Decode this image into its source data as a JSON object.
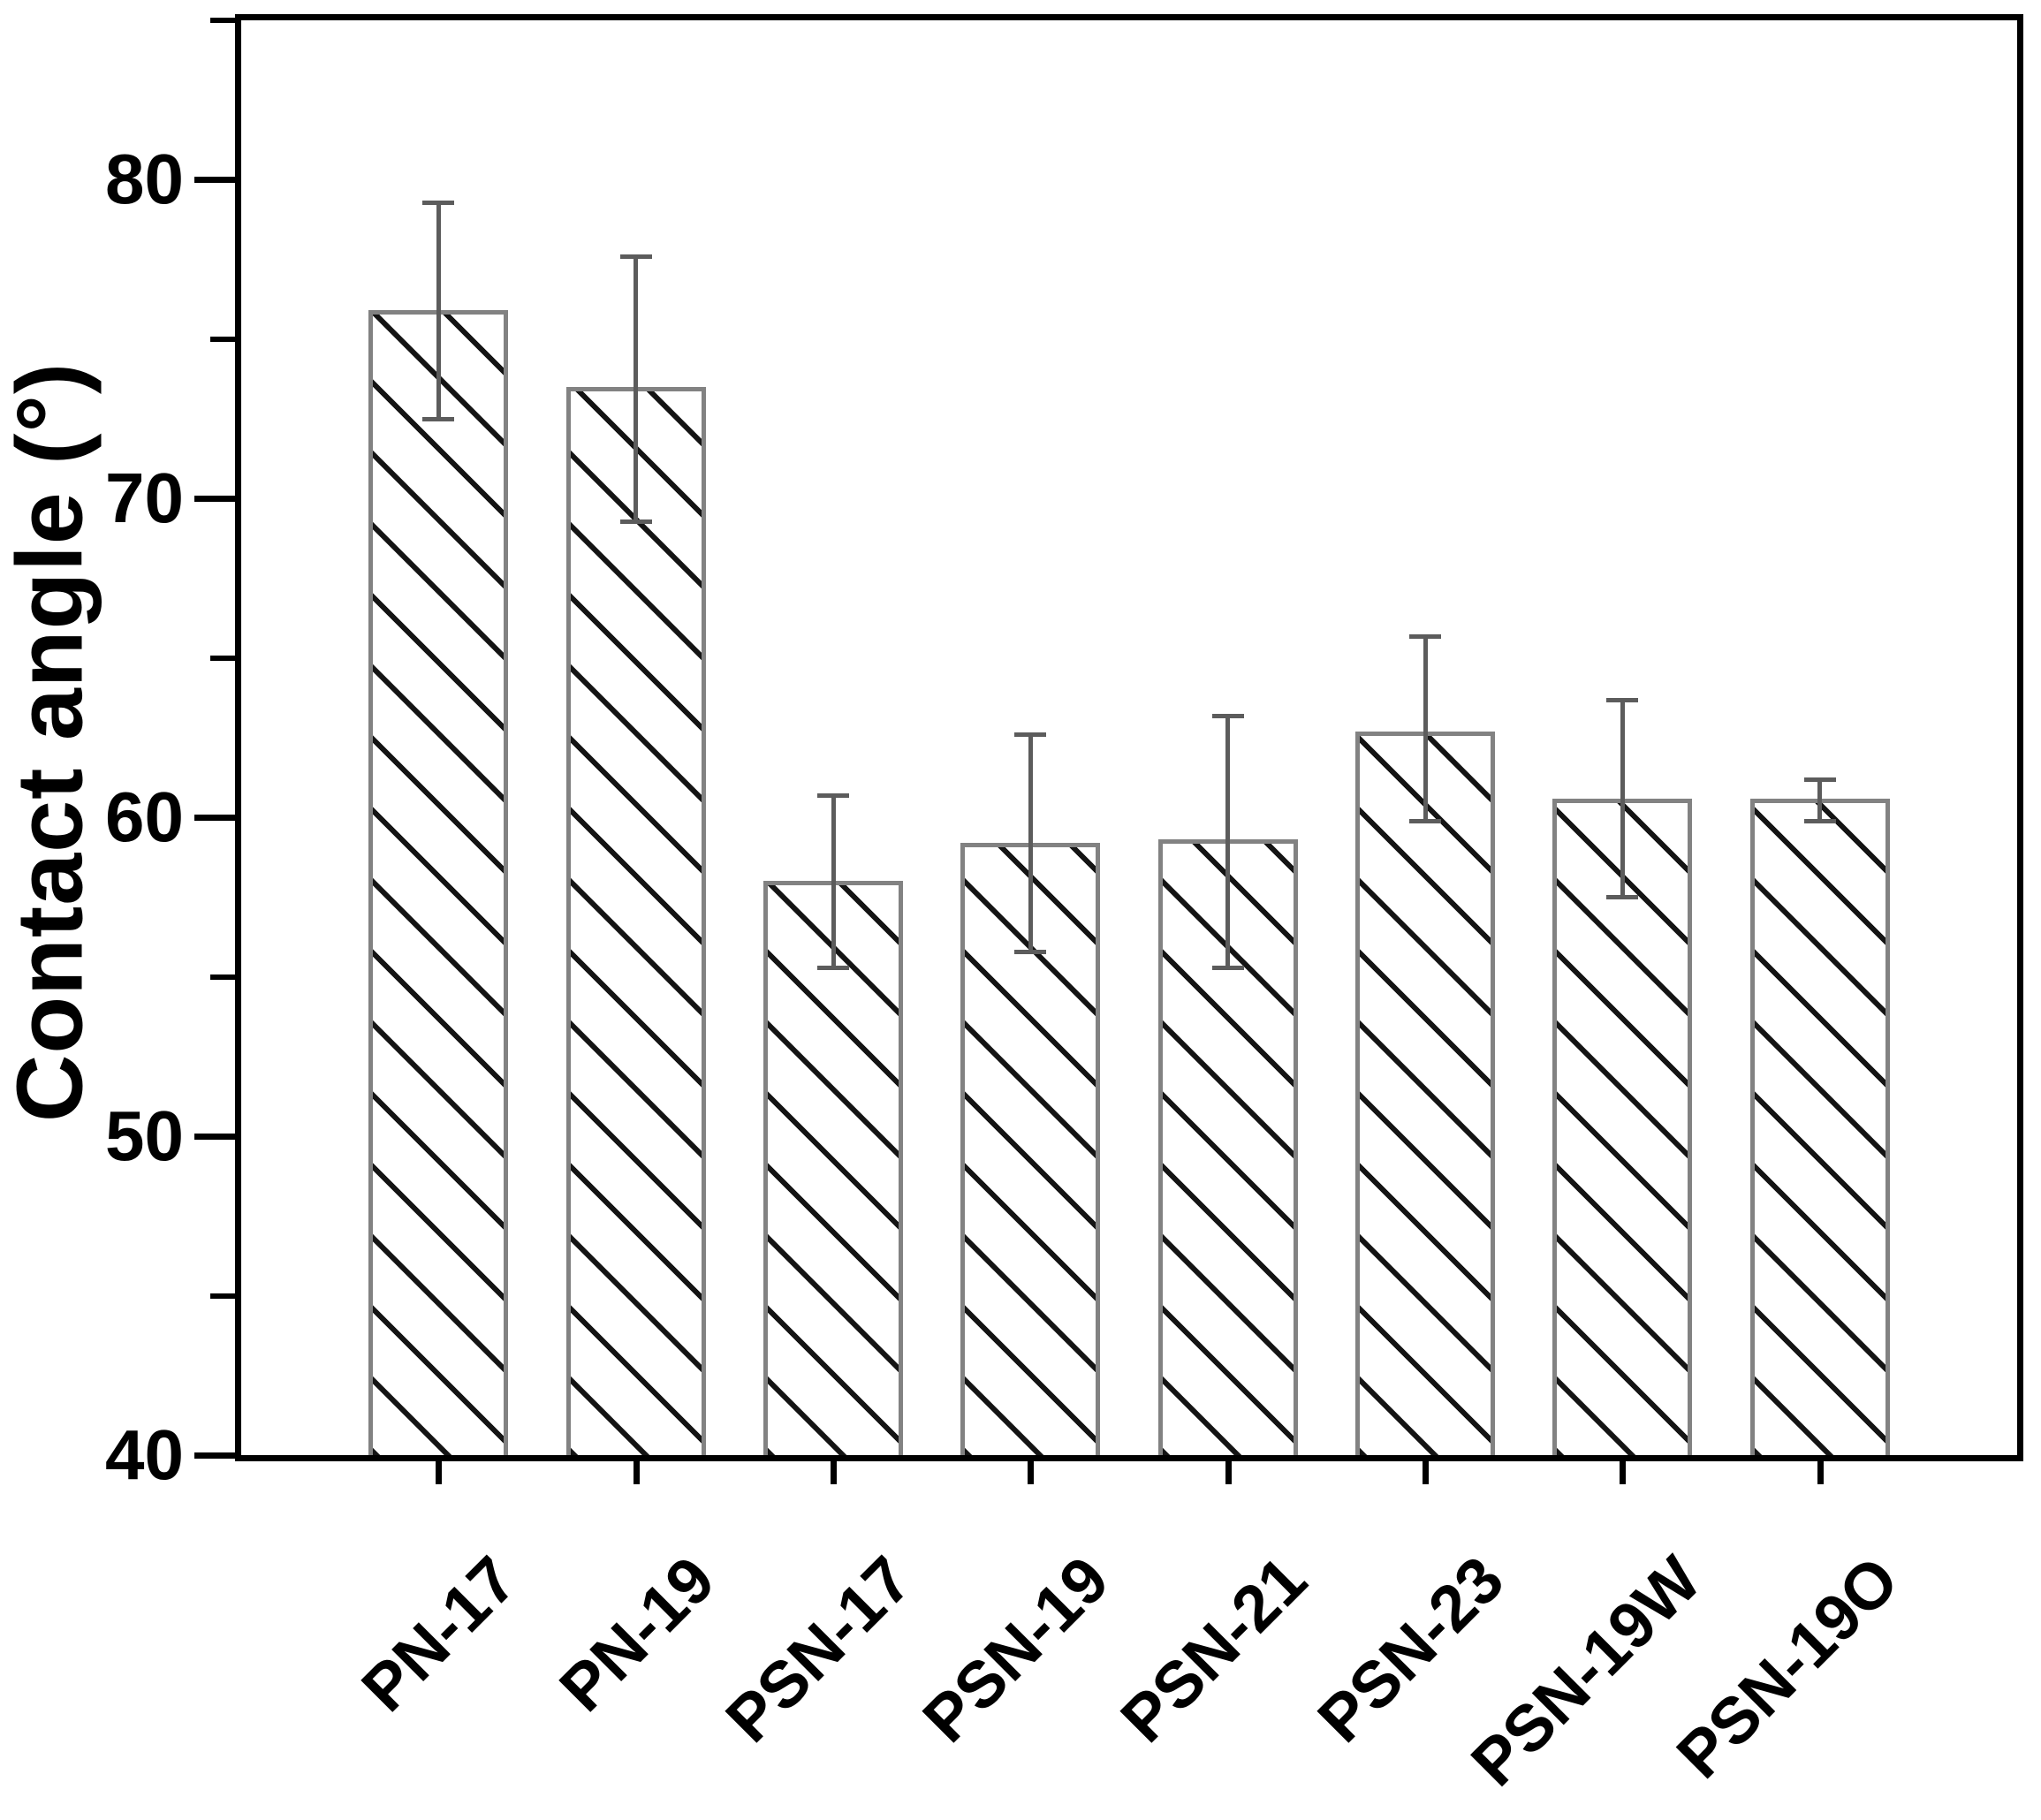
{
  "chart_data": {
    "type": "bar",
    "title": "",
    "xlabel": "",
    "ylabel": "Contact angle (°)",
    "ylim": [
      40,
      85
    ],
    "yticks_major": [
      40,
      50,
      60,
      70,
      80
    ],
    "yticks_minor": [
      45,
      55,
      65,
      75,
      85
    ],
    "grid": false,
    "legend_position": "none",
    "categories": [
      "PN-17",
      "PN-19",
      "PSN-17",
      "PSN-19",
      "PSN-21",
      "PSN-23",
      "PSN-19W",
      "PSN-19O"
    ],
    "series": [
      {
        "name": "Contact angle",
        "values": [
          75.9,
          73.5,
          58.0,
          59.2,
          59.3,
          62.7,
          60.6,
          60.6
        ],
        "error_up": [
          3.4,
          4.1,
          2.7,
          3.4,
          3.9,
          3.0,
          3.1,
          0.6
        ],
        "error_down": [
          3.4,
          4.2,
          2.7,
          3.4,
          4.0,
          2.8,
          3.1,
          0.7
        ]
      }
    ],
    "bar_style": {
      "fill": "#ffffff",
      "hatch": "diagonal-down",
      "hatch_color": "#141414",
      "border_color": "#828282",
      "error_color": "#5c5c5c",
      "axis_color": "#000000",
      "text_color": "#000000"
    }
  }
}
